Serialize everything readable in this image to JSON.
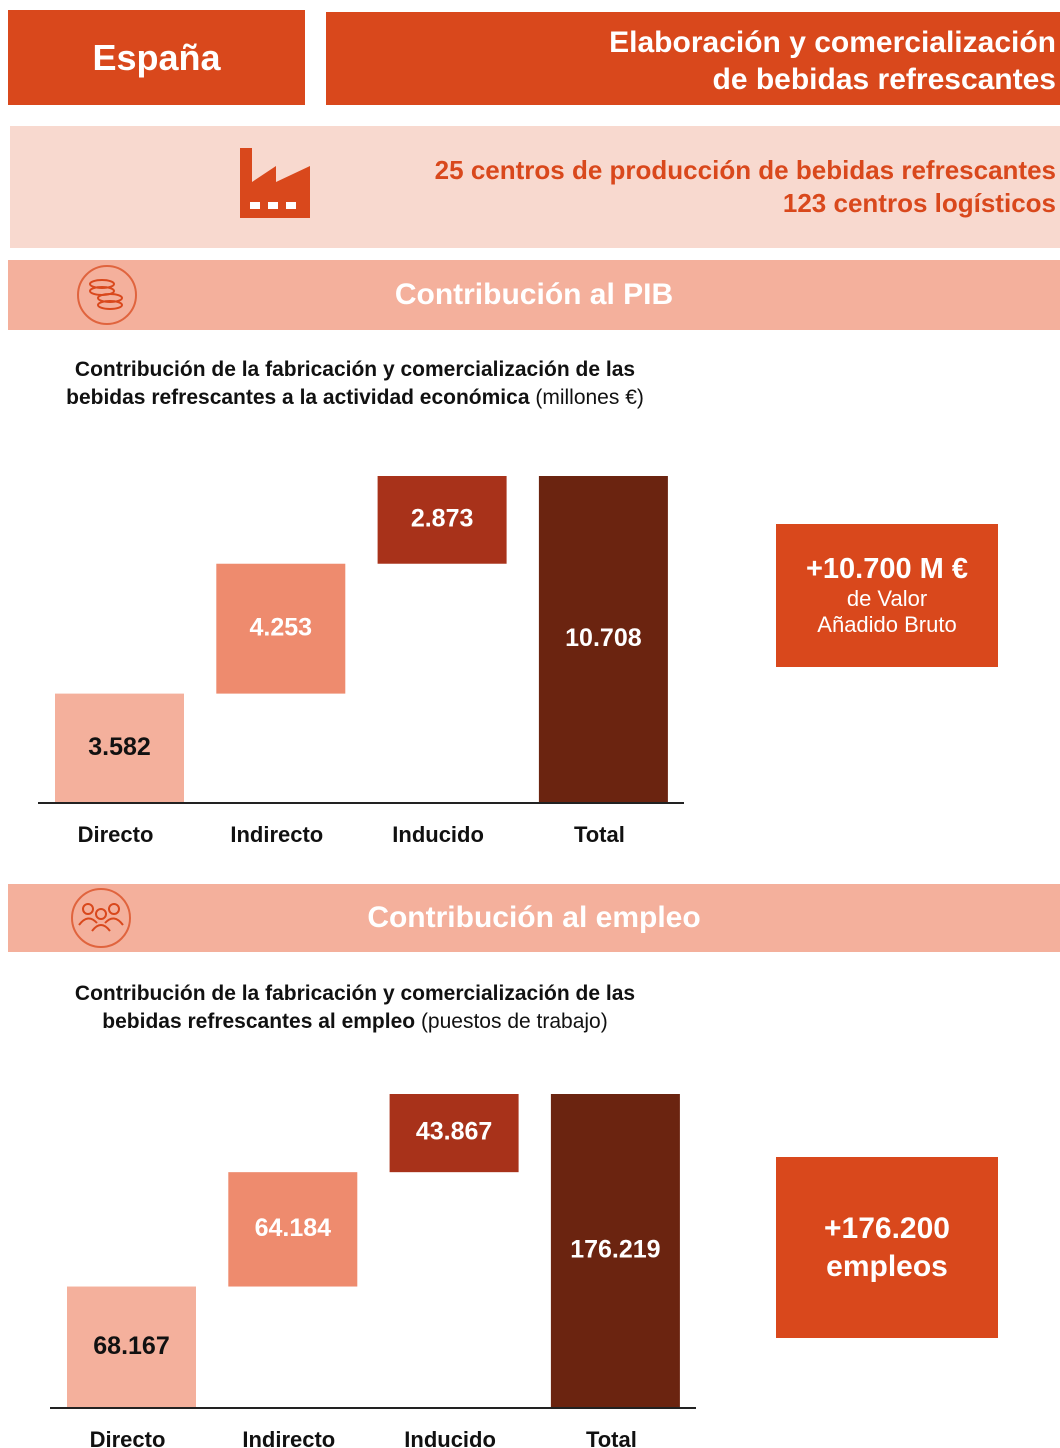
{
  "header": {
    "region": "España",
    "sector": [
      "Elaboración y comercialización",
      "de bebidas refrescantes"
    ]
  },
  "facilities": [
    "25 centros de producción de bebidas refrescantes",
    "123 centros logísticos"
  ],
  "sections": [
    "Contribución al PIB",
    "Contribución al empleo"
  ],
  "callouts": [
    {
      "headline": "+10.700 M €",
      "lines": [
        "de Valor",
        "Añadido Bruto"
      ]
    },
    {
      "headline": "+176.200",
      "lines": [
        "empleos"
      ]
    }
  ],
  "chart_data": [
    {
      "type": "waterfall",
      "title": "Contribución de la fabricación y comercialización de las bebidas refrescantes a la actividad económica",
      "title_unit": "(millones €)",
      "categories": [
        "Directo",
        "Indirecto",
        "Inducido",
        "Total"
      ],
      "values": [
        3582,
        4253,
        2873,
        10708
      ],
      "value_labels": [
        "3.582",
        "4.253",
        "2.873",
        "10.708"
      ],
      "colors": [
        "#f4b09c",
        "#ee8b6e",
        "#a8321a",
        "#6b2410"
      ]
    },
    {
      "type": "waterfall",
      "title": "Contribución de la fabricación y comercialización de las bebidas refrescantes al empleo",
      "title_unit": "(puestos de trabajo)",
      "categories": [
        "Directo",
        "Indirecto",
        "Inducido",
        "Total"
      ],
      "values": [
        68167,
        64184,
        43867,
        176219
      ],
      "value_labels": [
        "68.167",
        "64.184",
        "43.867",
        "176.219"
      ],
      "colors": [
        "#f4b09c",
        "#ee8b6e",
        "#a8321a",
        "#6b2410"
      ]
    }
  ]
}
